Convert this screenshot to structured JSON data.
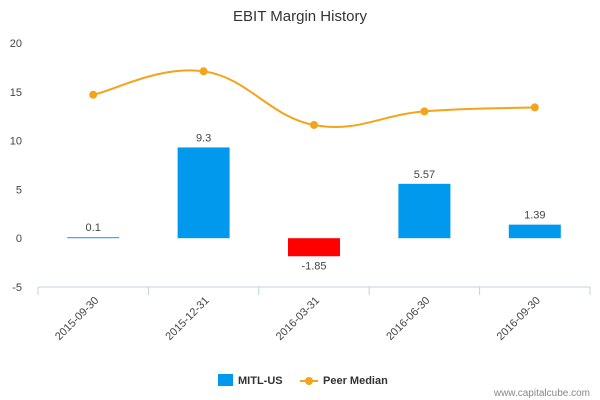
{
  "chart_data": {
    "type": "bar",
    "title": "EBIT Margin History",
    "categories": [
      "2015-09-30",
      "2015-12-31",
      "2016-03-31",
      "2016-06-30",
      "2016-09-30"
    ],
    "series": [
      {
        "name": "MITL-US",
        "type": "bar",
        "values": [
          0.1,
          9.3,
          -1.85,
          5.57,
          1.39
        ],
        "labels": [
          "0.1",
          "9.3",
          "-1.85",
          "5.57",
          "1.39"
        ],
        "color": "#0099ee",
        "negative_color": "#ff0000"
      },
      {
        "name": "Peer Median",
        "type": "line",
        "values": [
          14.7,
          17.1,
          11.6,
          13.0,
          13.4
        ],
        "color": "#f5a31a"
      }
    ],
    "ylim": [
      -5,
      20
    ],
    "yticks": [
      -5,
      0,
      5,
      10,
      15,
      20
    ],
    "xlabel": "",
    "ylabel": "",
    "grid": false,
    "legend_position": "bottom"
  },
  "credit": "www.capitalcube.com"
}
